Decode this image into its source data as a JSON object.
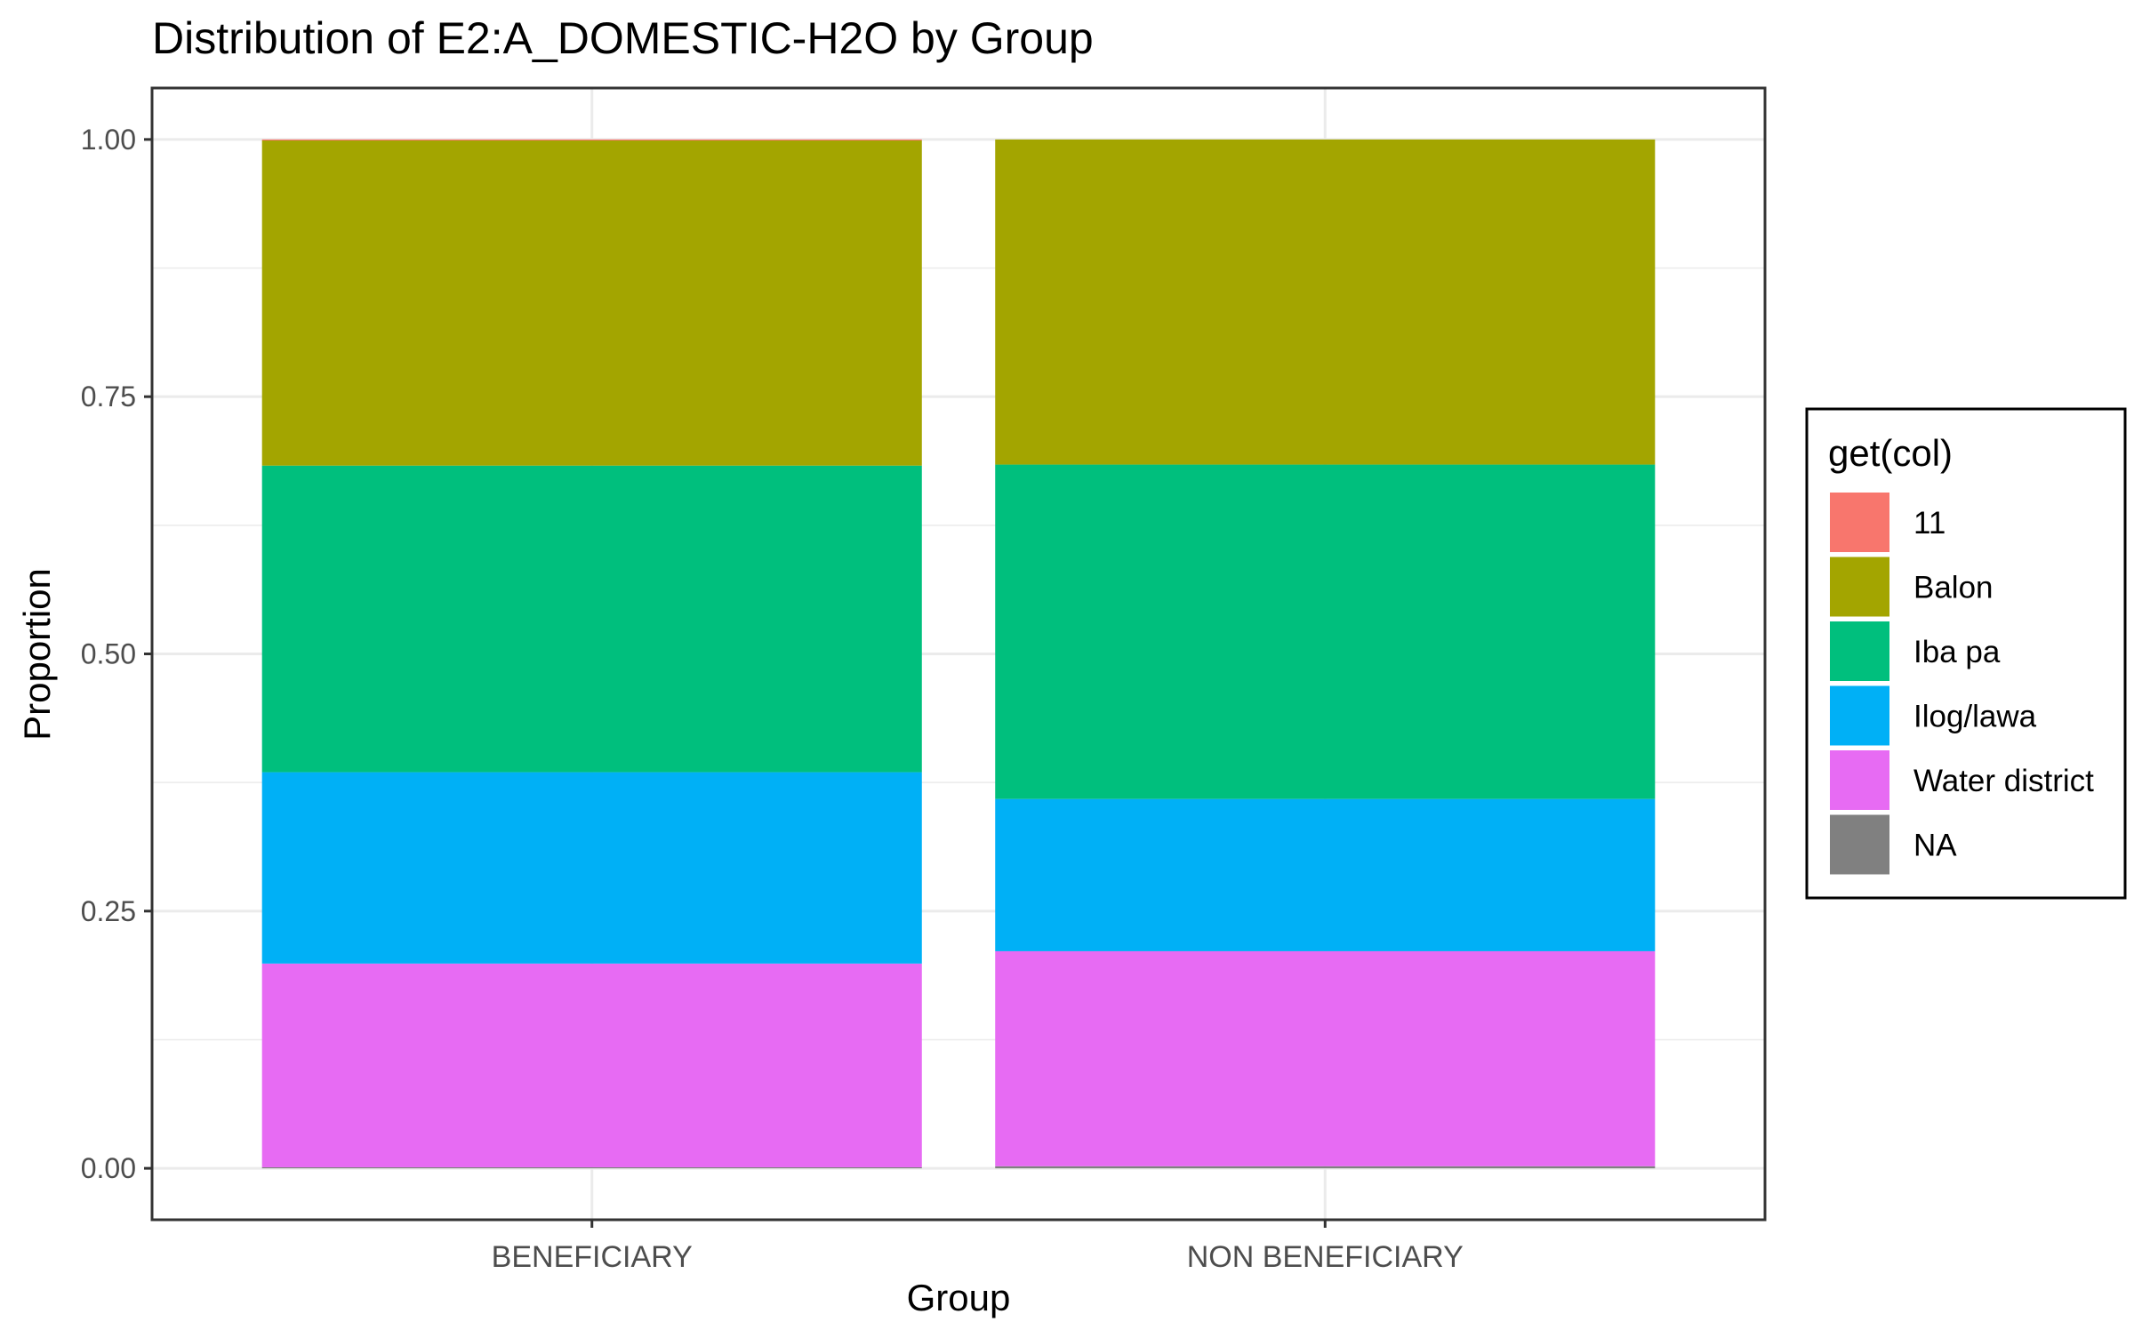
{
  "chart_data": {
    "type": "bar",
    "stacked": true,
    "proportional": true,
    "title": "Distribution of E2:A_DOMESTIC-H2O by Group",
    "xlabel": "Group",
    "ylabel": "Proportion",
    "categories": [
      "BENEFICIARY",
      "NON BENEFICIARY"
    ],
    "ylim": [
      -0.05,
      1.05
    ],
    "yticks": [
      0,
      0.25,
      0.5,
      0.75,
      1.0
    ],
    "ytick_labels": [
      "0.00",
      "0.25",
      "0.50",
      "0.75",
      "1.00"
    ],
    "grid": true,
    "legend_title": "get(col)",
    "legend_position": "right",
    "series": [
      {
        "name": "11",
        "color": "#F8766D",
        "values": [
          0.001,
          0.0
        ]
      },
      {
        "name": "Balon",
        "color": "#A3A500",
        "values": [
          0.316,
          0.316
        ]
      },
      {
        "name": "Iba pa",
        "color": "#00BF7D",
        "values": [
          0.298,
          0.325
        ]
      },
      {
        "name": "Ilog/lawa",
        "color": "#00B0F6",
        "values": [
          0.186,
          0.148
        ]
      },
      {
        "name": "Water district",
        "color": "#E76BF3",
        "values": [
          0.198,
          0.209
        ]
      },
      {
        "name": "NA",
        "color": "#808080",
        "values": [
          0.001,
          0.002
        ]
      }
    ]
  }
}
